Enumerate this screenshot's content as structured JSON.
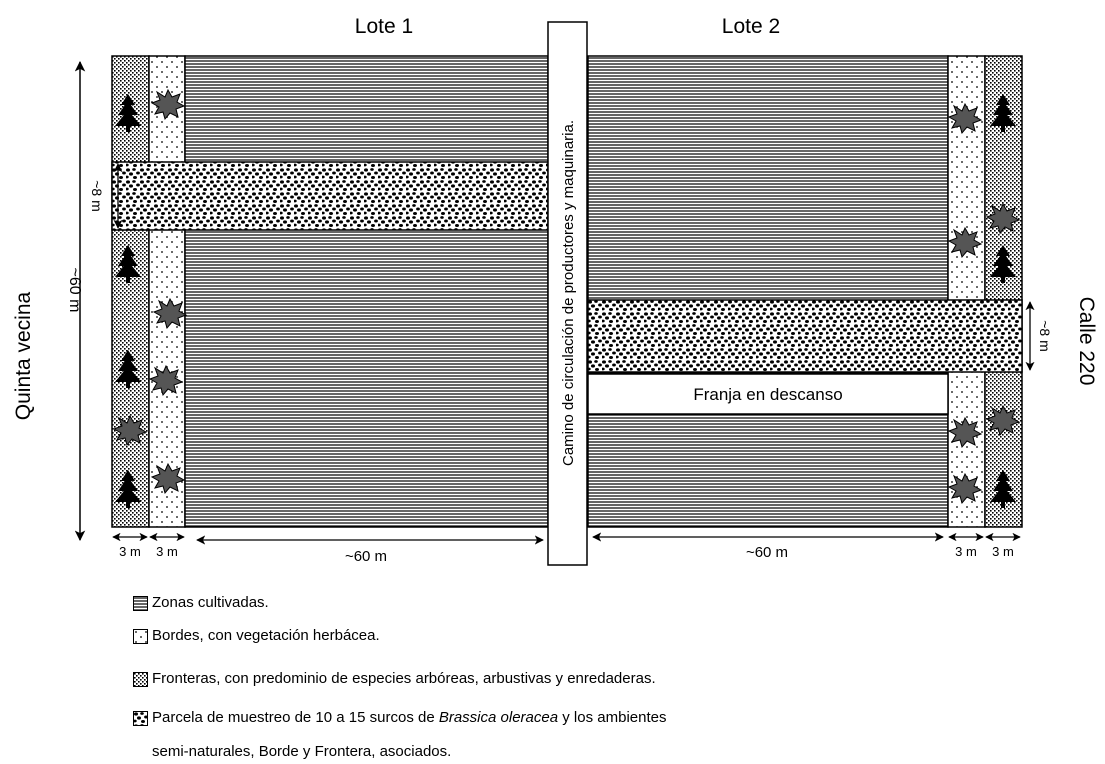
{
  "lots": {
    "lot1": "Lote 1",
    "lot2": "Lote 2"
  },
  "side_labels": {
    "left": "Quinta vecina",
    "right": "Calle 220"
  },
  "central_path": "Camino de circulación de productores y maquinaria.",
  "rest_strip": "Franja en descanso",
  "measures": {
    "height": "~60 m",
    "strip_left": "~8 m",
    "strip_right": "~8 m",
    "width_lot1": "~60 m",
    "width_lot2": "~60 m",
    "border_left_1": "3 m",
    "border_left_2": "3 m",
    "border_right_1": "3 m",
    "border_right_2": "3 m"
  },
  "legend": {
    "cultivated": "Zonas cultivadas.",
    "borders": "Bordes, con vegetación herbácea.",
    "frontiers": "Fronteras, con predominio de especies arbóreas, arbustivas y enredaderas.",
    "sampling_pre": "Parcela de muestreo de 10 a 15 surcos de",
    "sampling_species": "Brassica oleracea",
    "sampling_post": "y los ambientes",
    "sampling_line2": "semi-naturales, Borde  y Frontera, asociados."
  },
  "colors": {
    "ink": "#000000",
    "paper": "#ffffff",
    "foliage": "#555555"
  }
}
